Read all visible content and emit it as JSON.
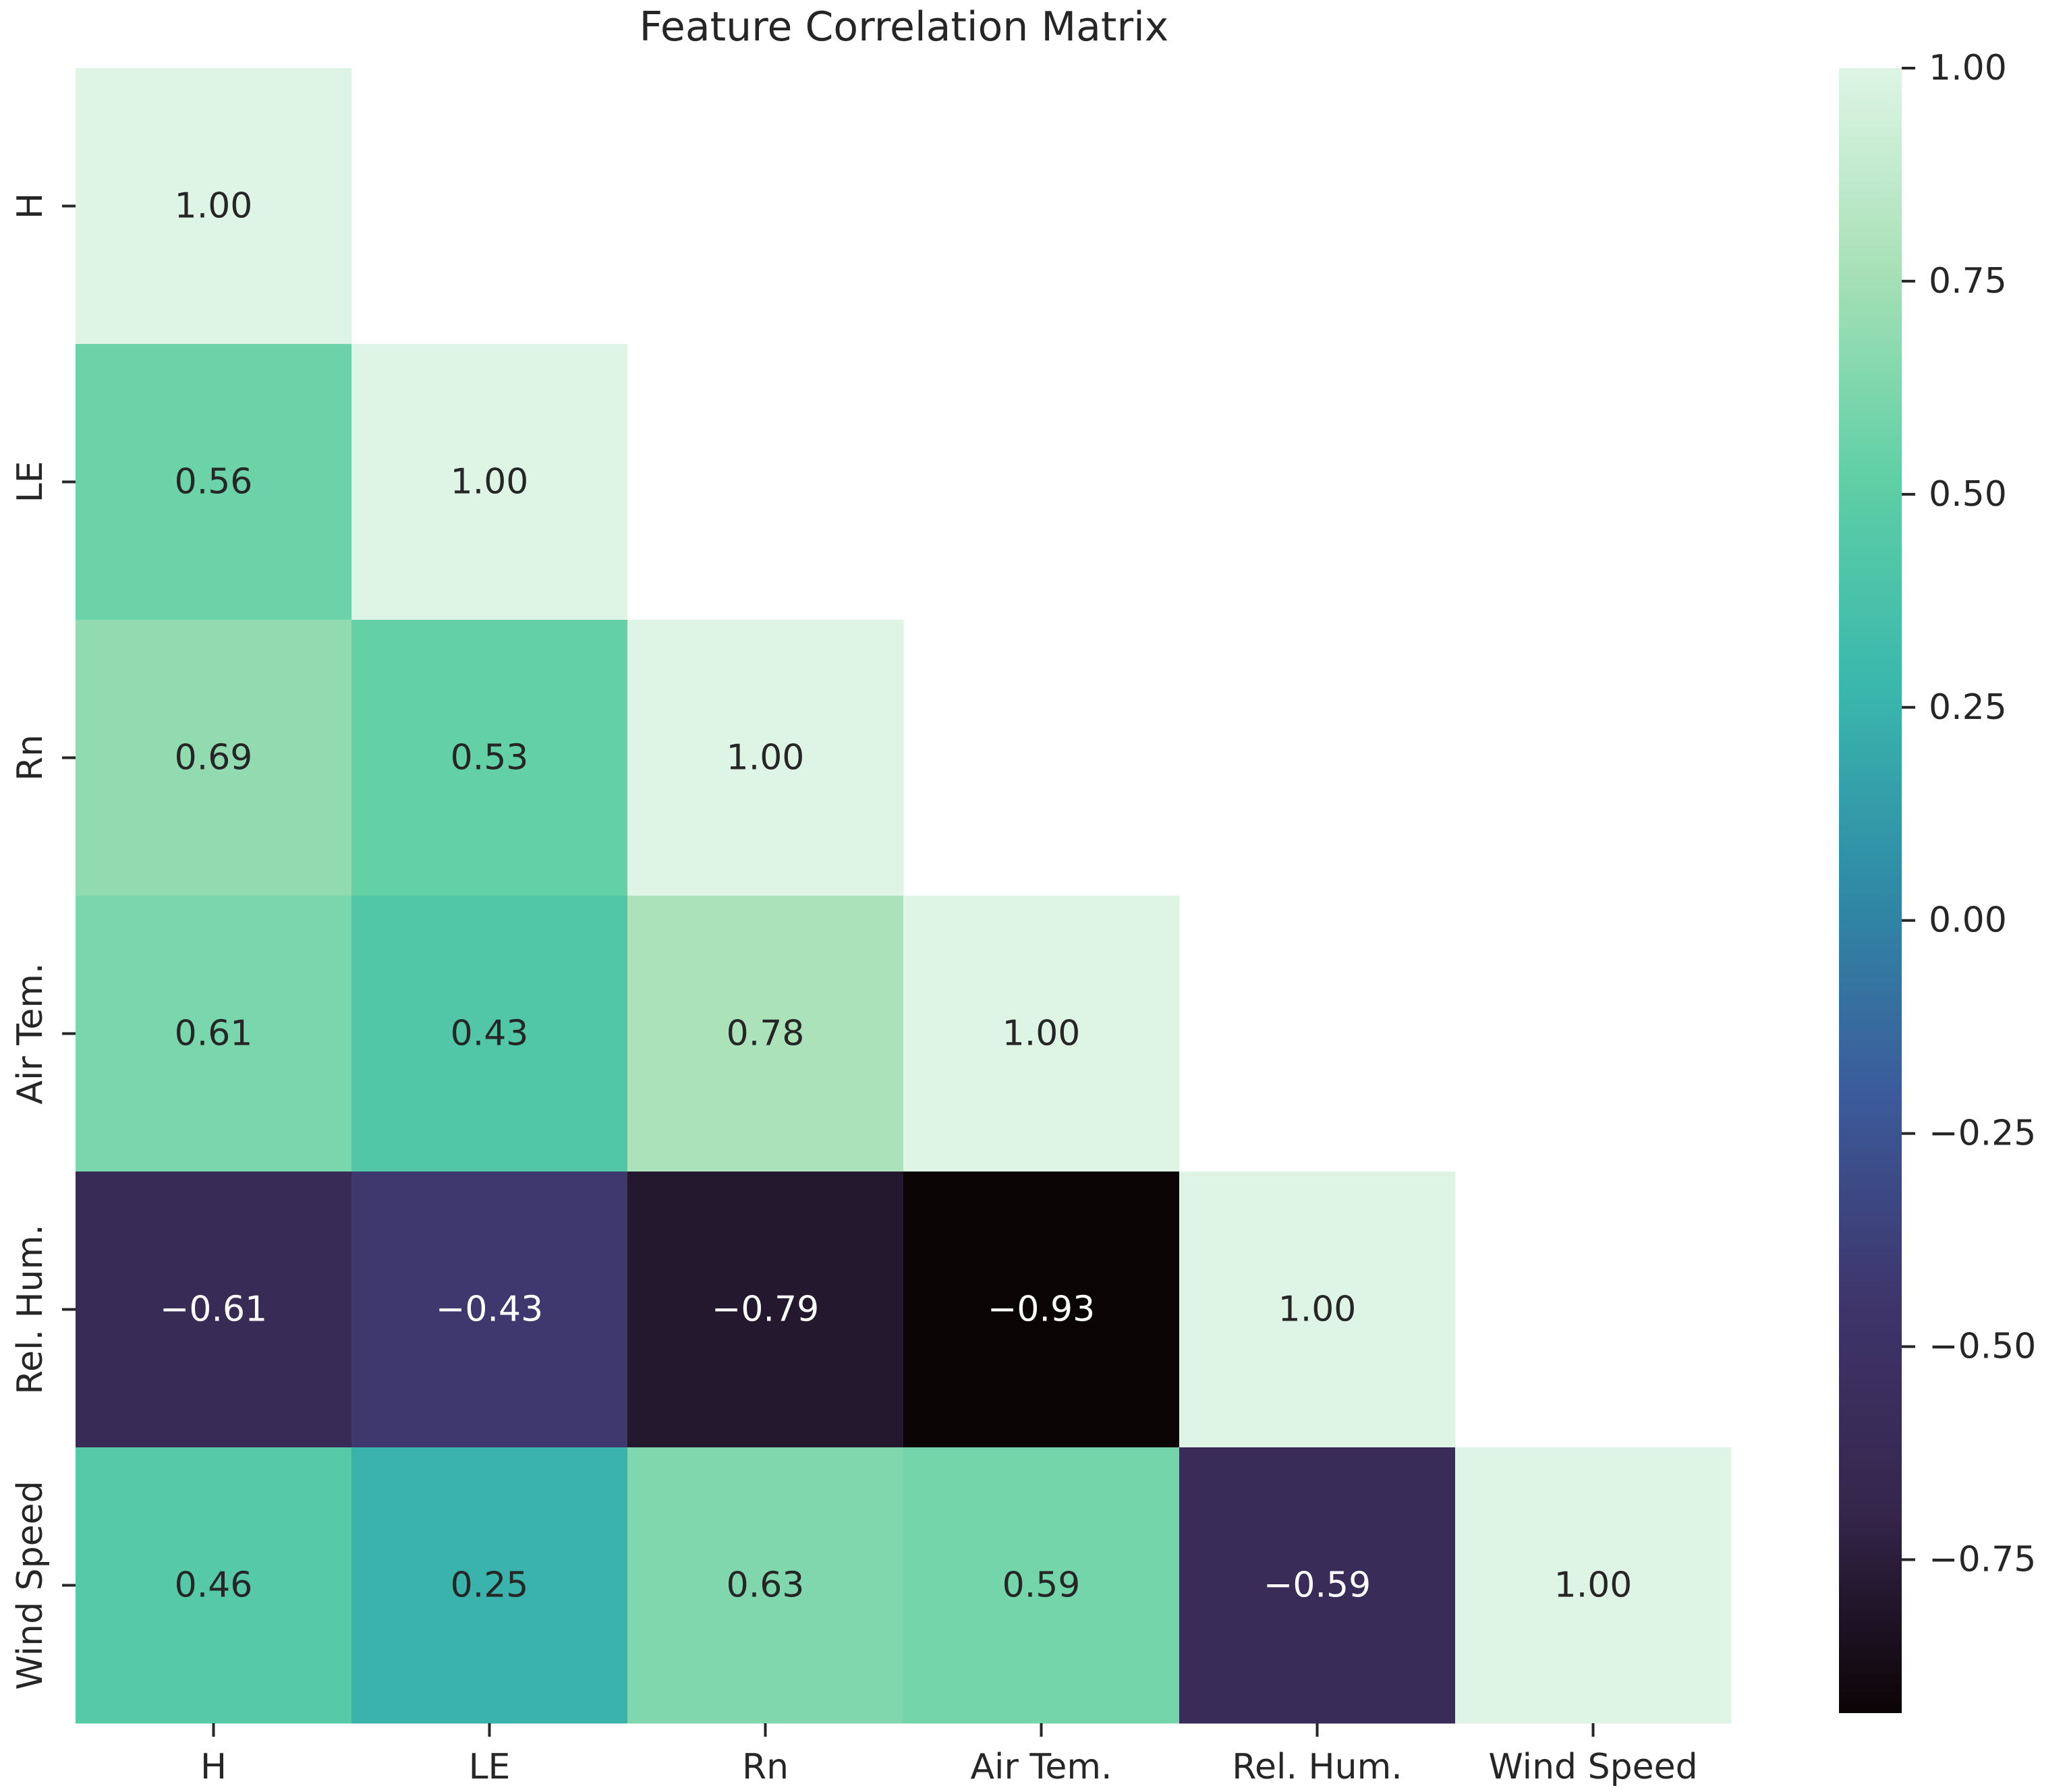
{
  "chart_data": {
    "type": "heatmap",
    "title": "Feature Correlation Matrix",
    "xlabel": "",
    "ylabel": "",
    "row_labels": [
      "H",
      "LE",
      "Rn",
      "Air Tem.",
      "Rel. Hum.",
      "Wind Speed"
    ],
    "col_labels": [
      "H",
      "LE",
      "Rn",
      "Air Tem.",
      "Rel. Hum.",
      "Wind Speed"
    ],
    "mask": "upper-triangle",
    "values": [
      [
        1.0,
        null,
        null,
        null,
        null,
        null
      ],
      [
        0.56,
        1.0,
        null,
        null,
        null,
        null
      ],
      [
        0.69,
        0.53,
        1.0,
        null,
        null,
        null
      ],
      [
        0.61,
        0.43,
        0.78,
        1.0,
        null,
        null
      ],
      [
        -0.61,
        -0.43,
        -0.79,
        -0.93,
        1.0,
        null
      ],
      [
        0.46,
        0.25,
        0.63,
        0.59,
        -0.59,
        1.0
      ]
    ],
    "cell_labels": [
      [
        "1.00",
        "",
        "",
        "",
        "",
        ""
      ],
      [
        "0.56",
        "1.00",
        "",
        "",
        "",
        ""
      ],
      [
        "0.69",
        "0.53",
        "1.00",
        "",
        "",
        ""
      ],
      [
        "0.61",
        "0.43",
        "0.78",
        "1.00",
        "",
        ""
      ],
      [
        "−0.61",
        "−0.43",
        "−0.79",
        "−0.93",
        "1.00",
        ""
      ],
      [
        "0.46",
        "0.25",
        "0.63",
        "0.59",
        "−0.59",
        "1.00"
      ]
    ],
    "colorbar": {
      "vmin": -0.93,
      "vmax": 1.0,
      "ticks": [
        1.0,
        0.75,
        0.5,
        0.25,
        0.0,
        -0.25,
        -0.5,
        -0.75
      ],
      "tick_labels": [
        "1.00",
        "0.75",
        "0.50",
        "0.25",
        "0.00",
        "−0.25",
        "−0.50",
        "−0.75"
      ],
      "colormap": "mako",
      "colormap_stops": [
        "#0b0405",
        "#35264c",
        "#3e356b",
        "#3b5a9a",
        "#2f8aa6",
        "#3ab8ad",
        "#5fcfa5",
        "#a6e0b6",
        "#def5e5"
      ]
    }
  }
}
